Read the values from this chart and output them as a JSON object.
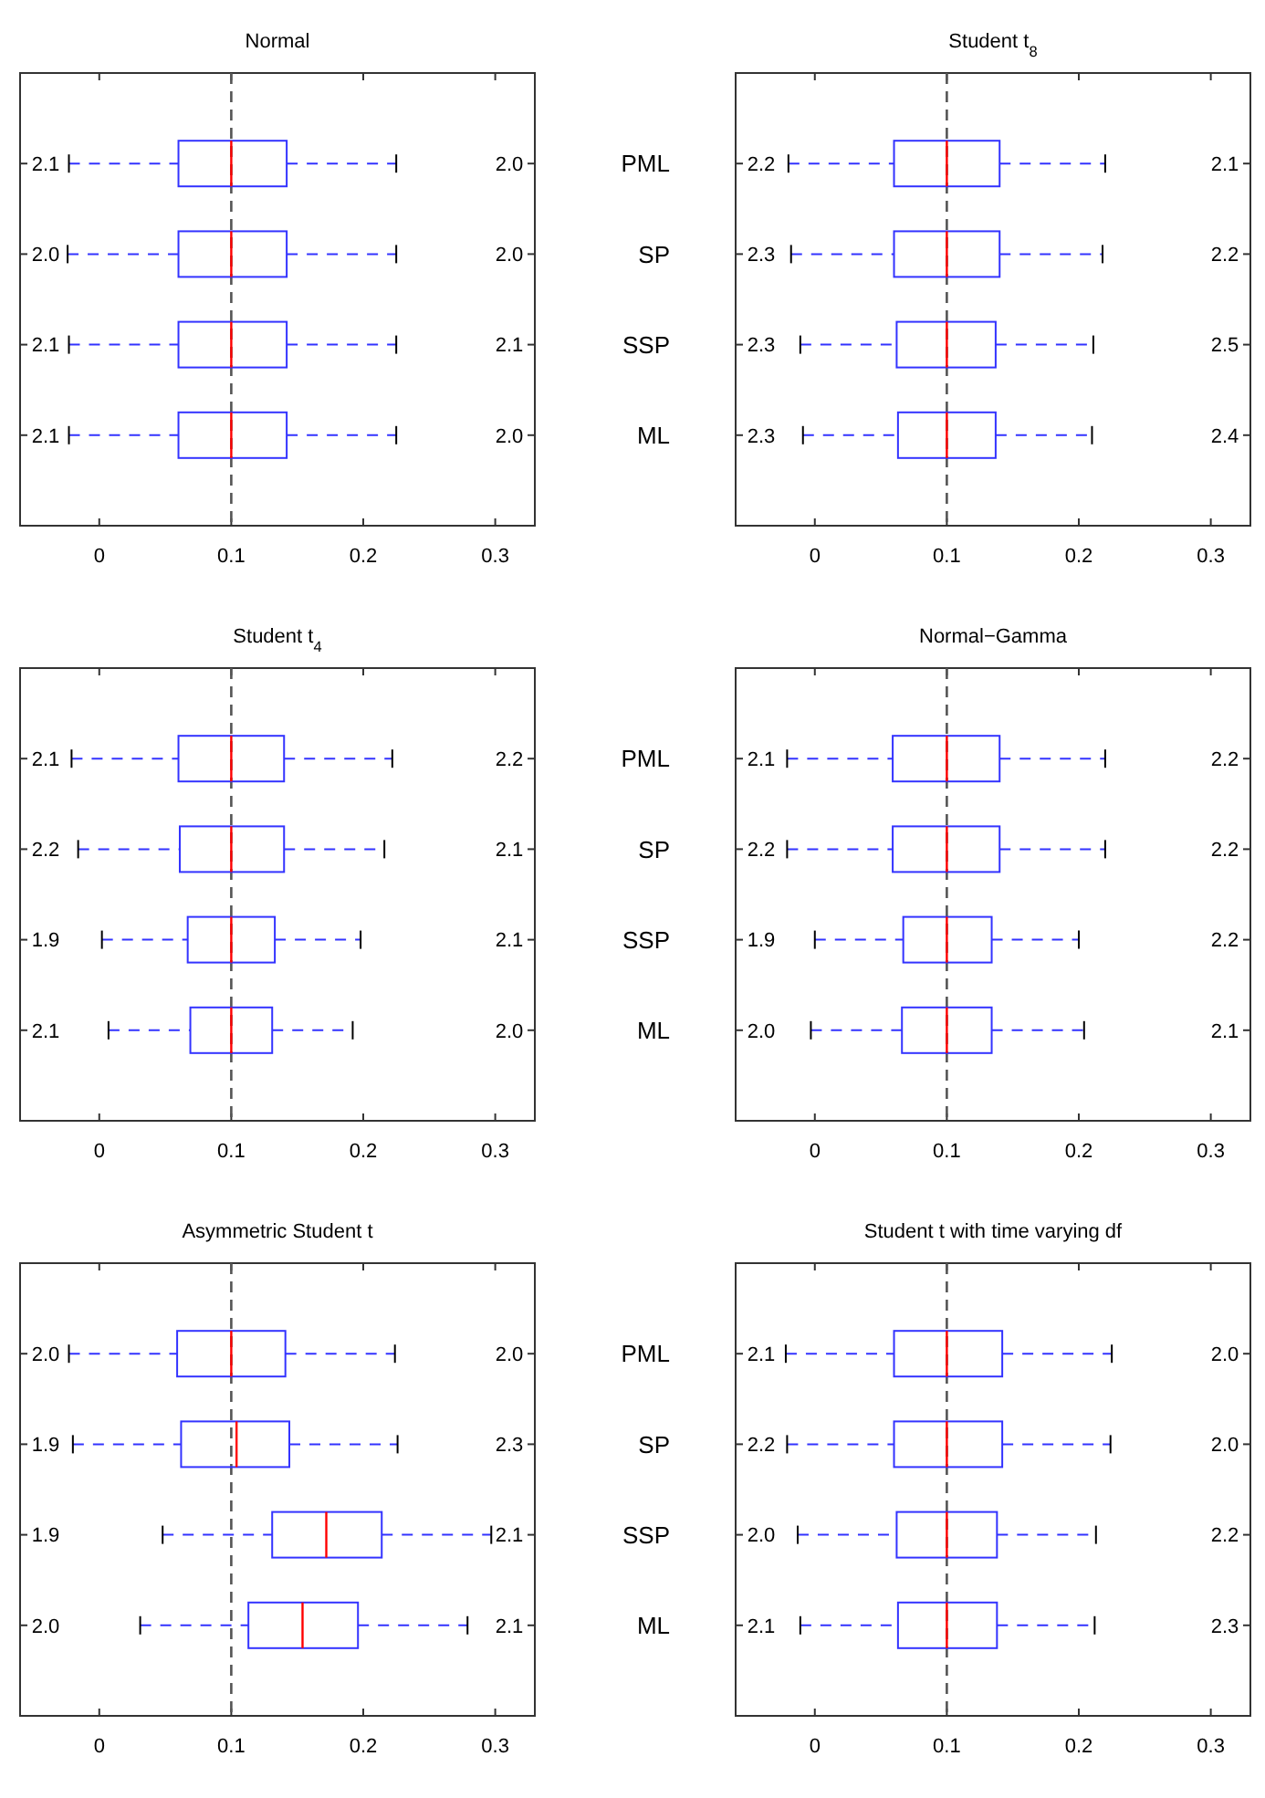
{
  "chart_data": [
    {
      "type": "box",
      "title": "Normal",
      "orientation": "horizontal",
      "categories": [
        null,
        null,
        null,
        null
      ],
      "tick_labels": "x",
      "xlim": [
        -0.06,
        0.33
      ],
      "xticks": [
        0,
        0.1,
        0.2,
        0.3
      ],
      "ref_lines": [
        {
          "axis": "x",
          "value": 0.1,
          "color": "#555555",
          "line_style": "dashed"
        }
      ],
      "series": [
        {
          "color": "#3333ff",
          "boxes": [
            {
              "low": -0.023,
              "q1": 0.06,
              "median": 0.1,
              "q3": 0.142,
              "high": 0.225
            },
            {
              "low": -0.024,
              "q1": 0.06,
              "median": 0.1,
              "q3": 0.142,
              "high": 0.225
            },
            {
              "low": -0.023,
              "q1": 0.06,
              "median": 0.1,
              "q3": 0.142,
              "high": 0.225
            },
            {
              "low": -0.023,
              "q1": 0.06,
              "median": 0.1,
              "q3": 0.142,
              "high": 0.225
            }
          ]
        }
      ],
      "annotations": [
        "2.1",
        "2.0",
        "2.1",
        "2.1",
        "2.0",
        "2.0",
        "2.1",
        "2.0"
      ]
    },
    {
      "type": "box",
      "title": "Student t$_{8}$",
      "orientation": "horizontal",
      "categories": [
        "PML",
        "SP",
        "SSP",
        "ML"
      ],
      "xlim": [
        -0.06,
        0.33
      ],
      "xticks": [
        0,
        0.1,
        0.2,
        0.3
      ],
      "ref_lines": [
        {
          "axis": "x",
          "value": 0.1,
          "color": "#555555",
          "line_style": "dashed"
        }
      ],
      "series": [
        {
          "color": "#3333ff",
          "boxes": [
            {
              "low": -0.02,
              "q1": 0.06,
              "median": 0.1,
              "q3": 0.14,
              "high": 0.22
            },
            {
              "low": -0.018,
              "q1": 0.06,
              "median": 0.1,
              "q3": 0.14,
              "high": 0.218
            },
            {
              "low": -0.011,
              "q1": 0.062,
              "median": 0.1,
              "q3": 0.137,
              "high": 0.211
            },
            {
              "low": -0.009,
              "q1": 0.063,
              "median": 0.1,
              "q3": 0.137,
              "high": 0.21
            }
          ]
        }
      ],
      "annotations": [
        "2.2",
        "2.3",
        "2.3",
        "2.3",
        "2.1",
        "2.2",
        "2.5",
        "2.4"
      ]
    },
    {
      "type": "box",
      "title": "Student t$_{4}$",
      "orientation": "horizontal",
      "categories": [
        null,
        null,
        null,
        null
      ],
      "tick_labels": "x",
      "xlim": [
        -0.06,
        0.33
      ],
      "xticks": [
        0,
        0.1,
        0.2,
        0.3
      ],
      "ref_lines": [
        {
          "axis": "x",
          "value": 0.1,
          "color": "#555555",
          "line_style": "dashed"
        }
      ],
      "series": [
        {
          "color": "#3333ff",
          "boxes": [
            {
              "low": -0.021,
              "q1": 0.06,
              "median": 0.1,
              "q3": 0.14,
              "high": 0.222
            },
            {
              "low": -0.016,
              "q1": 0.061,
              "median": 0.1,
              "q3": 0.14,
              "high": 0.216
            },
            {
              "low": 0.002,
              "q1": 0.067,
              "median": 0.1,
              "q3": 0.133,
              "high": 0.198
            },
            {
              "low": 0.007,
              "q1": 0.069,
              "median": 0.1,
              "q3": 0.131,
              "high": 0.192
            }
          ]
        }
      ],
      "annotations": [
        "2.1",
        "2.2",
        "1.9",
        "2.1",
        "2.2",
        "2.1",
        "2.1",
        "2.0"
      ]
    },
    {
      "type": "box",
      "title": "Normal−Gamma",
      "orientation": "horizontal",
      "categories": [
        "PML",
        "SP",
        "SSP",
        "ML"
      ],
      "xlim": [
        -0.06,
        0.33
      ],
      "xticks": [
        0,
        0.1,
        0.2,
        0.3
      ],
      "ref_lines": [
        {
          "axis": "x",
          "value": 0.1,
          "color": "#555555",
          "line_style": "dashed"
        }
      ],
      "series": [
        {
          "color": "#3333ff",
          "boxes": [
            {
              "low": -0.021,
              "q1": 0.059,
              "median": 0.1,
              "q3": 0.14,
              "high": 0.22
            },
            {
              "low": -0.021,
              "q1": 0.059,
              "median": 0.1,
              "q3": 0.14,
              "high": 0.22
            },
            {
              "low": 0.0,
              "q1": 0.067,
              "median": 0.1,
              "q3": 0.134,
              "high": 0.2
            },
            {
              "low": -0.003,
              "q1": 0.066,
              "median": 0.1,
              "q3": 0.134,
              "high": 0.204
            }
          ]
        }
      ],
      "annotations": [
        "2.1",
        "2.2",
        "1.9",
        "2.0",
        "2.2",
        "2.2",
        "2.2",
        "2.1"
      ]
    },
    {
      "type": "box",
      "title": "Asymmetric Student t",
      "orientation": "horizontal",
      "categories": [
        null,
        null,
        null,
        null
      ],
      "tick_labels": "x",
      "xlim": [
        -0.06,
        0.33
      ],
      "xticks": [
        0,
        0.1,
        0.2,
        0.3
      ],
      "ref_lines": [
        {
          "axis": "x",
          "value": 0.1,
          "color": "#555555",
          "line_style": "dashed"
        }
      ],
      "series": [
        {
          "color": "#3333ff",
          "boxes": [
            {
              "low": -0.023,
              "q1": 0.059,
              "median": 0.1,
              "q3": 0.141,
              "high": 0.224
            },
            {
              "low": -0.02,
              "q1": 0.062,
              "median": 0.104,
              "q3": 0.144,
              "high": 0.226
            },
            {
              "low": 0.048,
              "q1": 0.131,
              "median": 0.172,
              "q3": 0.214,
              "high": 0.297
            },
            {
              "low": 0.031,
              "q1": 0.113,
              "median": 0.154,
              "q3": 0.196,
              "high": 0.279
            }
          ]
        }
      ],
      "annotations": [
        "2.0",
        "1.9",
        "1.9",
        "2.0",
        "2.0",
        "2.3",
        "2.1",
        "2.1"
      ]
    },
    {
      "type": "box",
      "title": "Student t with time varying df",
      "orientation": "horizontal",
      "categories": [
        "PML",
        "SP",
        "SSP",
        "ML"
      ],
      "xlim": [
        -0.06,
        0.33
      ],
      "xticks": [
        0,
        0.1,
        0.2,
        0.3
      ],
      "ref_lines": [
        {
          "axis": "x",
          "value": 0.1,
          "color": "#555555",
          "line_style": "dashed"
        }
      ],
      "series": [
        {
          "color": "#3333ff",
          "boxes": [
            {
              "low": -0.022,
              "q1": 0.06,
              "median": 0.1,
              "q3": 0.142,
              "high": 0.225
            },
            {
              "low": -0.021,
              "q1": 0.06,
              "median": 0.1,
              "q3": 0.142,
              "high": 0.224
            },
            {
              "low": -0.013,
              "q1": 0.062,
              "median": 0.1,
              "q3": 0.138,
              "high": 0.213
            },
            {
              "low": -0.011,
              "q1": 0.063,
              "median": 0.1,
              "q3": 0.138,
              "high": 0.212
            }
          ]
        }
      ],
      "annotations": [
        "2.1",
        "2.2",
        "2.0",
        "2.1",
        "2.0",
        "2.0",
        "2.2",
        "2.3"
      ]
    }
  ]
}
